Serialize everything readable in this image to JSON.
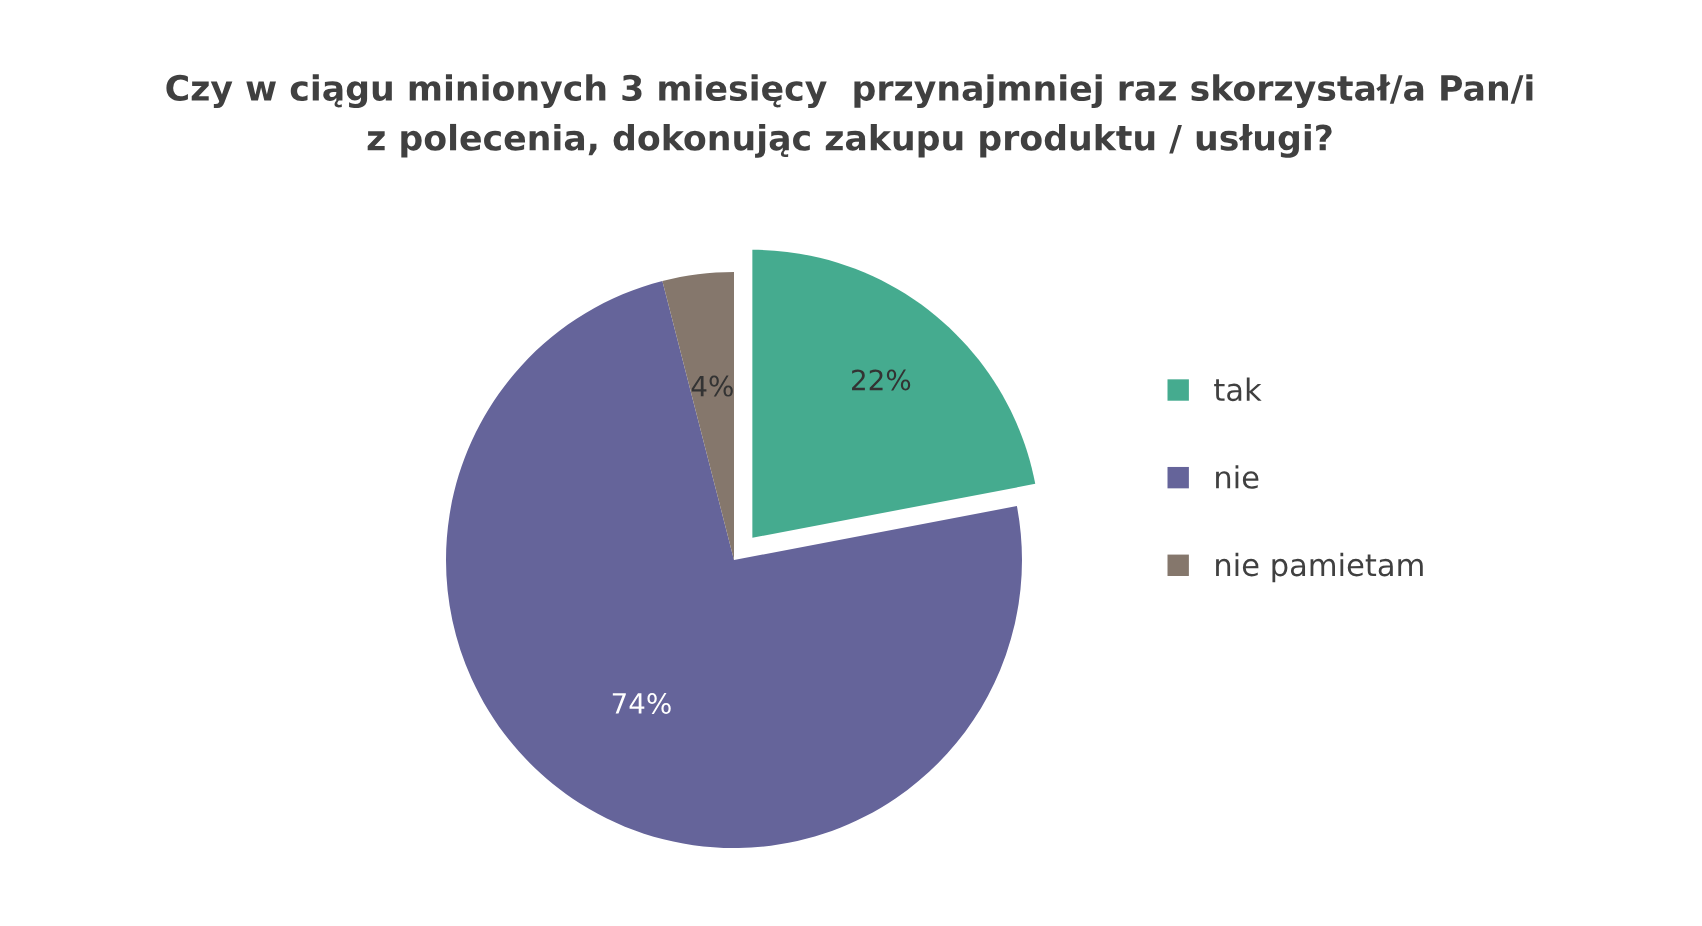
{
  "chart_data": {
    "type": "pie",
    "title": "Czy w ciągu minionych 3 miesięcy  przynajmniej raz skorzystał/a Pan/i\nz polecenia, dokonując zakupu produktu / usługi?",
    "categories": [
      "tak",
      "nie",
      "nie pamietam"
    ],
    "values": [
      22,
      74,
      4
    ],
    "colors": [
      "#45ab8f",
      "#65649a",
      "#85776c"
    ],
    "value_labels": [
      "22%",
      "74%",
      "4%"
    ],
    "legend": "right"
  }
}
